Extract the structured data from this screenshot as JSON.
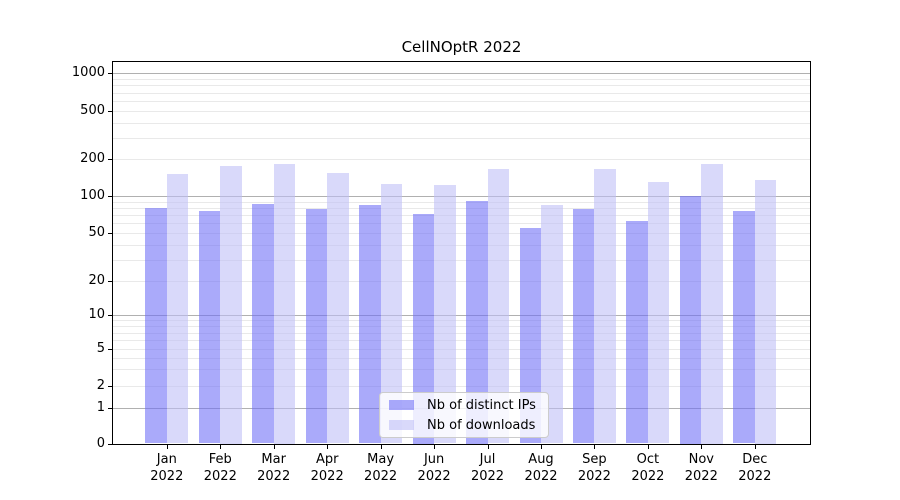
{
  "title": "CellNOptR 2022",
  "legend": {
    "items": [
      {
        "label": "Nb of distinct IPs"
      },
      {
        "label": "Nb of downloads"
      }
    ]
  },
  "colors": {
    "distinct_ips": "rgba(108,108,246,0.58)",
    "downloads": "rgba(190,190,246,0.58)",
    "major_grid": "#b0b0b0",
    "minor_grid": "#e9e9e9",
    "axis": "#000000"
  },
  "chart_data": {
    "type": "bar",
    "title": "CellNOptR 2022",
    "categories": [
      "Jan",
      "Feb",
      "Mar",
      "Apr",
      "May",
      "Jun",
      "Jul",
      "Aug",
      "Sep",
      "Oct",
      "Nov",
      "Dec"
    ],
    "year_label": "2022",
    "series": [
      {
        "name": "Nb of distinct IPs",
        "values": [
          80,
          75,
          86,
          78,
          85,
          72,
          91,
          55,
          78,
          63,
          100,
          76
        ]
      },
      {
        "name": "Nb of downloads",
        "values": [
          152,
          177,
          184,
          155,
          125,
          123,
          165,
          85,
          165,
          131,
          184,
          135
        ]
      }
    ],
    "y_axis": {
      "scale": "symlog",
      "tick_values": [
        0,
        1,
        2,
        5,
        10,
        20,
        50,
        100,
        200,
        500,
        1000
      ],
      "range": [
        0,
        1100
      ]
    },
    "grid": true,
    "legend_position": "lower center"
  }
}
